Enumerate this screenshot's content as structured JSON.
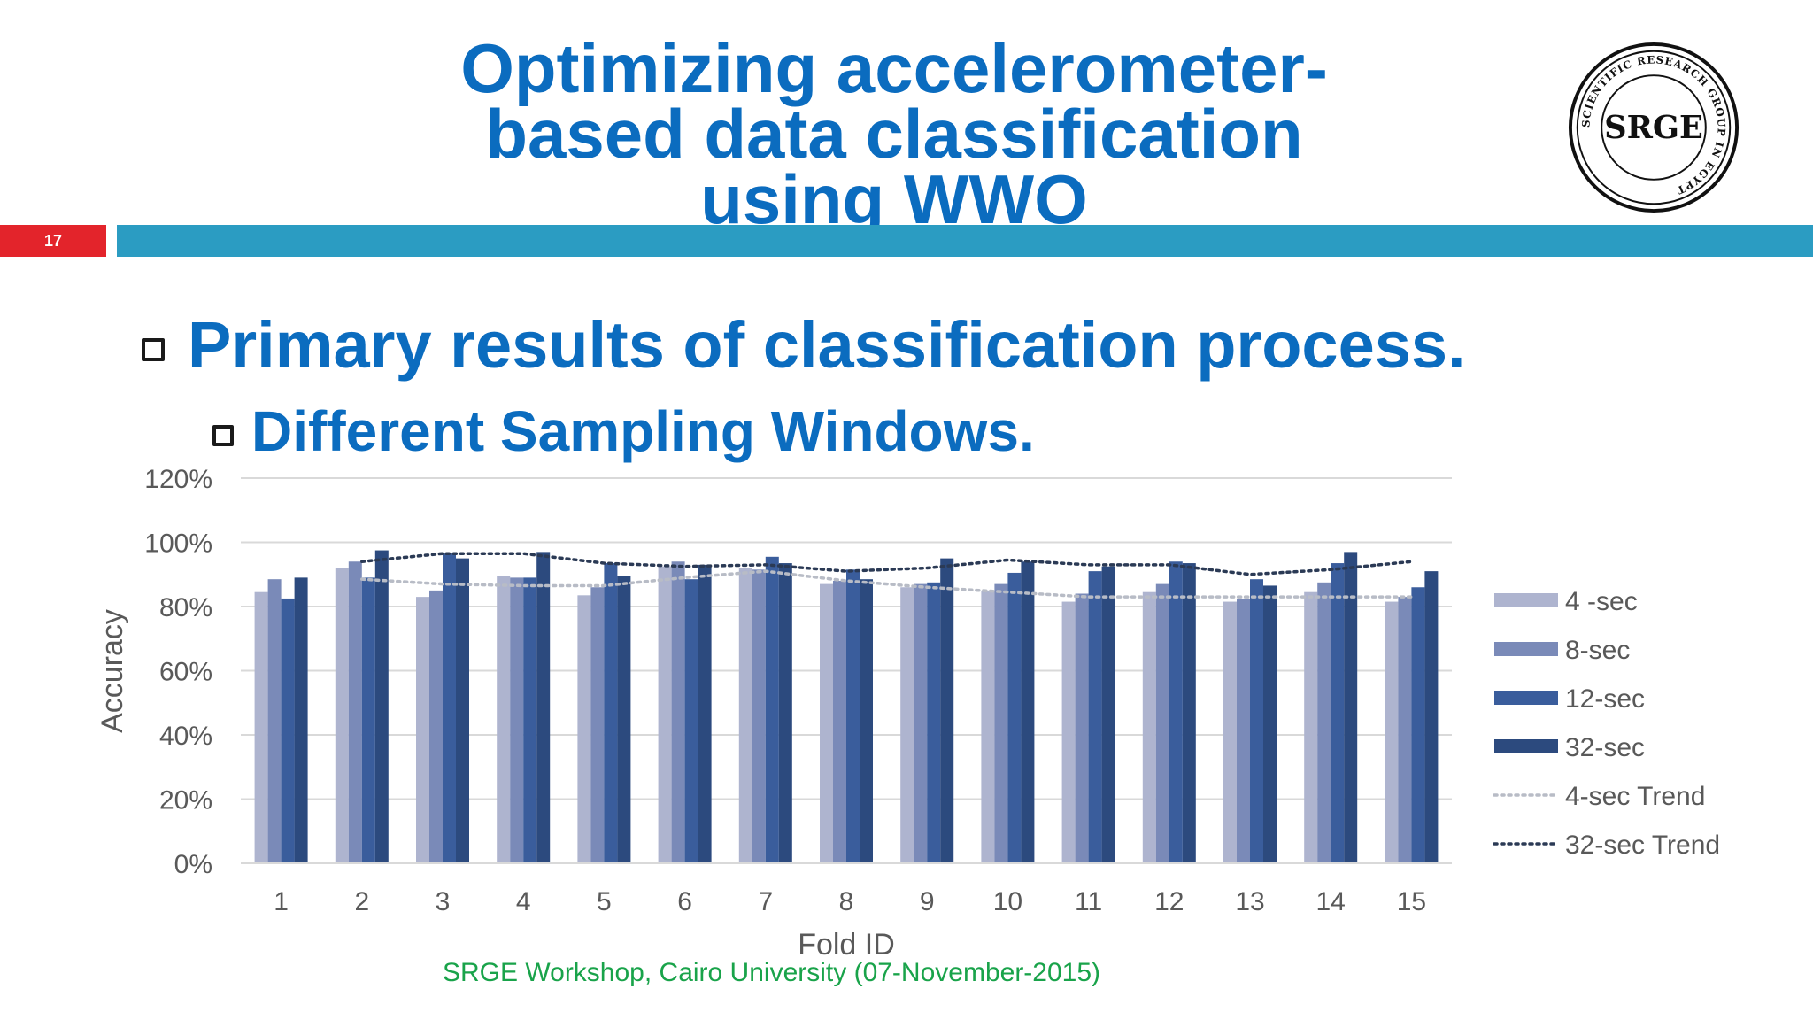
{
  "slide": {
    "title_lines": [
      "Optimizing accelerometer-",
      "based data classification",
      "using WWO"
    ],
    "number": "17",
    "bullet1": "Primary results of classification process.",
    "bullet2": "Different Sampling Windows.",
    "footer": "SRGE Workshop, Cairo University (07-November-2015)",
    "logo_text": "SRGE",
    "logo_ring_text": "SCIENTIFIC RESEARCH GROUP IN EGYPT",
    "colors": {
      "title": "#0b6cbf",
      "accent_red": "#e3242b",
      "accent_teal": "#2b9cc2",
      "footer": "#19a34a"
    }
  },
  "chart_data": {
    "type": "bar",
    "xlabel": "Fold ID",
    "ylabel": "Accuracy",
    "ylim": [
      0,
      120
    ],
    "y_ticks": [
      "0%",
      "20%",
      "40%",
      "60%",
      "80%",
      "100%",
      "120%"
    ],
    "categories": [
      "1",
      "2",
      "3",
      "4",
      "5",
      "6",
      "7",
      "8",
      "9",
      "10",
      "11",
      "12",
      "13",
      "14",
      "15"
    ],
    "series": [
      {
        "name": "4 -sec",
        "color": "#aeb4cf",
        "values": [
          84.5,
          92,
          83,
          89.5,
          83.5,
          92.5,
          92,
          87,
          86,
          85,
          81.5,
          84.5,
          81.5,
          84.5,
          81.5
        ]
      },
      {
        "name": "8-sec",
        "color": "#7a8ab8",
        "values": [
          88.5,
          94,
          85,
          89,
          86,
          94,
          91.5,
          88,
          87,
          87,
          84,
          87,
          82.5,
          87.5,
          83
        ]
      },
      {
        "name": "12-sec",
        "color": "#3a5d9c",
        "values": [
          82.5,
          89,
          96.5,
          89,
          93.5,
          88.5,
          95.5,
          91.5,
          87.5,
          90.5,
          91,
          94,
          88.5,
          93.5,
          86
        ]
      },
      {
        "name": "32-sec",
        "color": "#2c4a7e",
        "values": [
          89,
          97.5,
          95,
          97,
          89.5,
          93,
          93.5,
          88.5,
          95,
          94,
          92.5,
          93.5,
          86.5,
          97,
          91
        ]
      }
    ],
    "trends": [
      {
        "name": "4-sec Trend",
        "color": "#b8bcc6",
        "values": [
          null,
          88.5,
          87,
          86.5,
          86.5,
          89,
          91,
          88,
          86,
          84.5,
          83,
          83,
          83,
          83,
          83
        ]
      },
      {
        "name": "32-sec Trend",
        "color": "#2b3a55",
        "values": [
          null,
          94,
          96.5,
          96.5,
          93.5,
          92.5,
          93,
          91,
          92,
          94.5,
          93,
          93,
          90,
          91.5,
          94
        ]
      }
    ],
    "legend_position": "right",
    "grid": true
  }
}
